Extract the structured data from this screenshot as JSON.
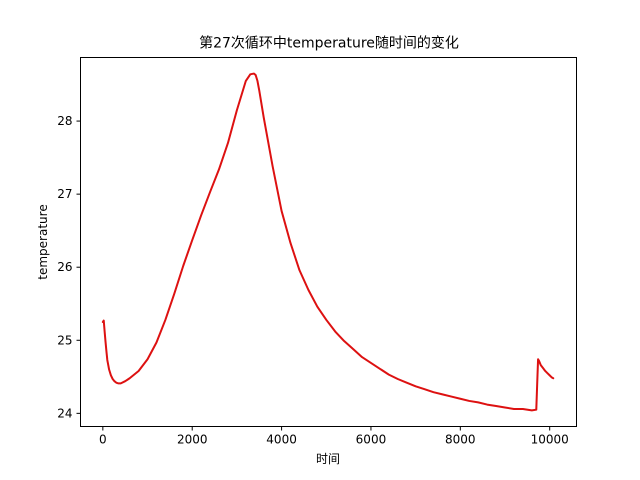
{
  "chart_data": {
    "type": "line",
    "title": "第27次循环中temperature随时间的变化",
    "xlabel": "时间",
    "ylabel": "temperature",
    "xlim": [
      -500,
      10600
    ],
    "ylim": [
      23.82,
      28.87
    ],
    "xticks": [
      0,
      2000,
      4000,
      6000,
      8000,
      10000
    ],
    "xtick_labels": [
      "0",
      "2000",
      "4000",
      "6000",
      "8000",
      "10000"
    ],
    "yticks": [
      24,
      25,
      26,
      27,
      28
    ],
    "ytick_labels": [
      "24",
      "25",
      "26",
      "27",
      "28"
    ],
    "grid": false,
    "series": [
      {
        "color": "#dd1111",
        "x": [
          0,
          20,
          40,
          60,
          80,
          100,
          140,
          180,
          220,
          260,
          300,
          350,
          400,
          500,
          600,
          800,
          1000,
          1200,
          1400,
          1600,
          1800,
          2000,
          2200,
          2400,
          2600,
          2800,
          3000,
          3200,
          3300,
          3380,
          3420,
          3460,
          3500,
          3600,
          3800,
          4000,
          4200,
          4400,
          4600,
          4800,
          5000,
          5200,
          5400,
          5600,
          5800,
          6000,
          6200,
          6400,
          6600,
          6800,
          7000,
          7200,
          7400,
          7600,
          7800,
          8000,
          8200,
          8400,
          8600,
          8800,
          9000,
          9200,
          9400,
          9600,
          9700,
          9720,
          9740,
          9760,
          9780,
          9800,
          9850,
          9900,
          9950,
          10000,
          10050,
          10080
        ],
        "y": [
          25.25,
          25.27,
          25.12,
          24.98,
          24.85,
          24.73,
          24.6,
          24.52,
          24.47,
          24.44,
          24.42,
          24.41,
          24.41,
          24.44,
          24.48,
          24.58,
          24.74,
          24.97,
          25.28,
          25.64,
          26.02,
          26.37,
          26.71,
          27.03,
          27.34,
          27.7,
          28.15,
          28.55,
          28.64,
          28.65,
          28.63,
          28.55,
          28.42,
          28.05,
          27.38,
          26.77,
          26.33,
          25.96,
          25.69,
          25.46,
          25.28,
          25.12,
          24.99,
          24.88,
          24.77,
          24.69,
          24.61,
          24.53,
          24.47,
          24.42,
          24.37,
          24.33,
          24.29,
          24.26,
          24.23,
          24.2,
          24.17,
          24.15,
          24.12,
          24.1,
          24.08,
          24.06,
          24.06,
          24.04,
          24.05,
          24.4,
          24.74,
          24.72,
          24.69,
          24.66,
          24.62,
          24.58,
          24.55,
          24.52,
          24.49,
          24.48
        ]
      }
    ]
  }
}
